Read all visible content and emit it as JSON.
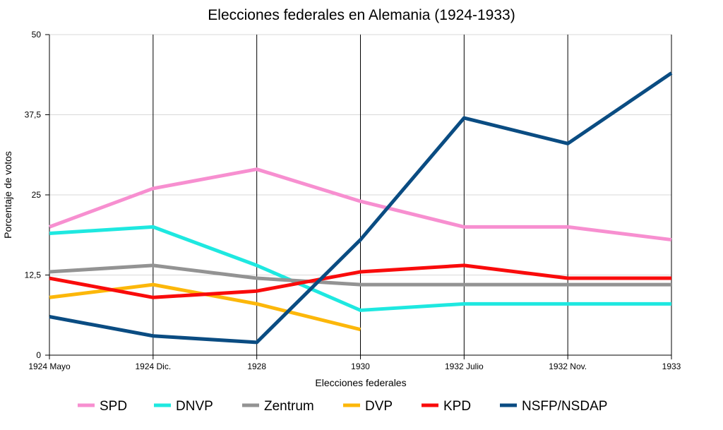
{
  "chart_data": {
    "type": "line",
    "title": "Elecciones federales en Alemania (1924-1933)",
    "xlabel": "Elecciones federales",
    "ylabel": "Porcentaje de votos",
    "categories": [
      "1924 Mayo",
      "1924 Dic.",
      "1928",
      "1930",
      "1932 Julio",
      "1932 Nov.",
      "1933"
    ],
    "y_ticks": [
      0,
      12.5,
      25,
      37.5,
      50
    ],
    "y_tick_labels": [
      "0",
      "12,5",
      "25",
      "37,5",
      "50"
    ],
    "ylim": [
      0,
      50
    ],
    "grid": {
      "horizontal": true,
      "vertical": true
    },
    "legend_position": "bottom",
    "series": [
      {
        "name": "SPD",
        "color": "#f78fd0",
        "values": [
          20,
          26,
          29,
          24,
          20,
          20,
          18
        ]
      },
      {
        "name": "DNVP",
        "color": "#1ee8e0",
        "values": [
          19,
          20,
          14,
          7,
          8,
          8,
          8
        ]
      },
      {
        "name": "Zentrum",
        "color": "#939393",
        "values": [
          13,
          14,
          12,
          11,
          11,
          11,
          11
        ]
      },
      {
        "name": "DVP",
        "color": "#fcb70a",
        "values": [
          9,
          11,
          8,
          4,
          null,
          null,
          null
        ]
      },
      {
        "name": "KPD",
        "color": "#f90b0b",
        "values": [
          12,
          9,
          10,
          13,
          14,
          12,
          12
        ]
      },
      {
        "name": "NSFP/NSDAP",
        "color": "#0a4c82",
        "values": [
          6,
          3,
          2,
          18,
          37,
          33,
          44
        ]
      }
    ]
  }
}
